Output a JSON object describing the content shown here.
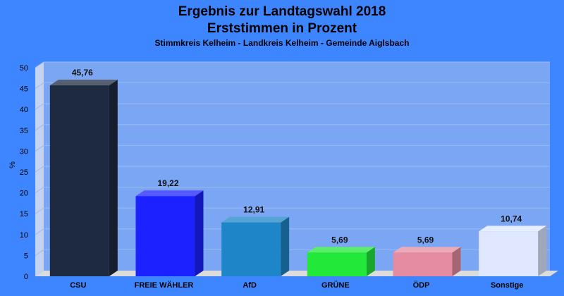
{
  "colors": {
    "background": "#3d86ff",
    "plot_area": "#7ba6f4",
    "plot_side": "#c3d3f0",
    "floor": "#dcdcdc"
  },
  "chart_data": {
    "type": "bar",
    "title": "Ergebnis zur Landtagswahl 2018",
    "subtitle": "Erststimmen in Prozent",
    "caption": "Stimmkreis Kelheim - Landkreis Kelheim - Gemeinde Aiglsbach",
    "ylabel": "%",
    "xlabel": "",
    "ylim": [
      0,
      50
    ],
    "yticks": [
      0,
      5,
      10,
      15,
      20,
      25,
      30,
      35,
      40,
      45,
      50
    ],
    "grid": true,
    "legend": "none",
    "categories": [
      "CSU",
      "FREIE WÄHLER",
      "AfD",
      "GRÜNE",
      "ÖDP",
      "Sonstige"
    ],
    "values": [
      45.76,
      19.22,
      12.91,
      5.69,
      5.69,
      10.74
    ],
    "value_labels": [
      "45,76",
      "19,22",
      "12,91",
      "5,69",
      "5,69",
      "10,74"
    ],
    "bar_colors": [
      "#1e2a40",
      "#1c22ff",
      "#1e86c8",
      "#22e83a",
      "#e68ca0",
      "#dfe8ff"
    ]
  }
}
